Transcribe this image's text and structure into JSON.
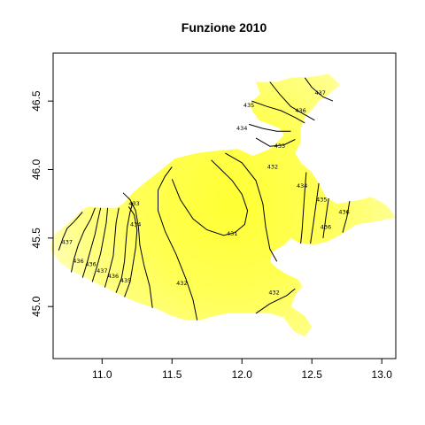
{
  "chart_data": {
    "type": "heatmap",
    "title": "Funzione 2010",
    "xlabel": "",
    "ylabel": "",
    "xlim": [
      10.65,
      13.1
    ],
    "ylim": [
      44.62,
      46.85
    ],
    "x_ticks": [
      11.0,
      11.5,
      12.0,
      12.5,
      13.0
    ],
    "x_tick_labels": [
      "11.0",
      "11.5",
      "12.0",
      "12.5",
      "13.0"
    ],
    "y_ticks": [
      45.0,
      45.5,
      46.0,
      46.5
    ],
    "y_tick_labels": [
      "45.0",
      "45.5",
      "46.0",
      "46.5"
    ],
    "grid": false,
    "legend": "none",
    "colors": {
      "low": "#ffff33",
      "mid": "#ffff70",
      "high": "#ffffd4",
      "contour": "#000000"
    },
    "region_outline": [
      [
        11.52,
        46.08
      ],
      [
        11.68,
        46.12
      ],
      [
        11.85,
        46.14
      ],
      [
        11.97,
        46.15
      ],
      [
        12.08,
        46.1
      ],
      [
        12.2,
        46.15
      ],
      [
        12.25,
        46.2
      ],
      [
        12.3,
        46.25
      ],
      [
        12.27,
        46.3
      ],
      [
        12.2,
        46.33
      ],
      [
        12.12,
        46.36
      ],
      [
        12.08,
        46.42
      ],
      [
        12.05,
        46.48
      ],
      [
        12.13,
        46.55
      ],
      [
        12.1,
        46.64
      ],
      [
        12.25,
        46.64
      ],
      [
        12.35,
        46.67
      ],
      [
        12.52,
        46.68
      ],
      [
        12.62,
        46.7
      ],
      [
        12.7,
        46.62
      ],
      [
        12.62,
        46.55
      ],
      [
        12.55,
        46.5
      ],
      [
        12.5,
        46.44
      ],
      [
        12.45,
        46.38
      ],
      [
        12.42,
        46.3
      ],
      [
        12.42,
        46.2
      ],
      [
        12.38,
        46.12
      ],
      [
        12.42,
        46.05
      ],
      [
        12.5,
        45.98
      ],
      [
        12.55,
        45.9
      ],
      [
        12.6,
        45.8
      ],
      [
        12.68,
        45.75
      ],
      [
        12.85,
        45.78
      ],
      [
        12.92,
        45.8
      ],
      [
        13.02,
        45.75
      ],
      [
        13.05,
        45.72
      ],
      [
        13.1,
        45.65
      ],
      [
        12.95,
        45.62
      ],
      [
        12.82,
        45.6
      ],
      [
        12.7,
        45.52
      ],
      [
        12.6,
        45.47
      ],
      [
        12.5,
        45.45
      ],
      [
        12.4,
        45.47
      ],
      [
        12.35,
        45.5
      ],
      [
        12.3,
        45.45
      ],
      [
        12.22,
        45.4
      ],
      [
        12.2,
        45.33
      ],
      [
        12.25,
        45.28
      ],
      [
        12.33,
        45.23
      ],
      [
        12.4,
        45.2
      ],
      [
        12.43,
        45.15
      ],
      [
        12.38,
        45.08
      ],
      [
        12.35,
        45.0
      ],
      [
        12.45,
        44.93
      ],
      [
        12.5,
        44.85
      ],
      [
        12.45,
        44.78
      ],
      [
        12.37,
        44.82
      ],
      [
        12.3,
        44.92
      ],
      [
        12.2,
        44.95
      ],
      [
        12.1,
        44.95
      ],
      [
        12.0,
        44.95
      ],
      [
        11.9,
        44.95
      ],
      [
        11.8,
        44.93
      ],
      [
        11.7,
        44.9
      ],
      [
        11.6,
        44.9
      ],
      [
        11.5,
        44.93
      ],
      [
        11.42,
        44.97
      ],
      [
        11.35,
        45.0
      ],
      [
        11.28,
        45.02
      ],
      [
        11.2,
        45.05
      ],
      [
        11.1,
        45.1
      ],
      [
        11.0,
        45.15
      ],
      [
        10.9,
        45.2
      ],
      [
        10.8,
        45.25
      ],
      [
        10.7,
        45.32
      ],
      [
        10.63,
        45.42
      ],
      [
        10.65,
        45.52
      ],
      [
        10.75,
        45.6
      ],
      [
        10.85,
        45.7
      ],
      [
        10.9,
        45.73
      ],
      [
        11.0,
        45.72
      ],
      [
        11.1,
        45.72
      ],
      [
        11.15,
        45.75
      ],
      [
        11.22,
        45.83
      ],
      [
        11.3,
        45.9
      ],
      [
        11.4,
        45.98
      ]
    ],
    "contours": [
      {
        "level": "437",
        "points": [
          [
            10.69,
            45.41
          ],
          [
            10.72,
            45.5
          ],
          [
            10.75,
            45.57
          ],
          [
            10.8,
            45.62
          ],
          [
            10.86,
            45.69
          ]
        ],
        "label_at": [
          10.75,
          45.47
        ]
      },
      {
        "level": "436",
        "points": [
          [
            10.78,
            45.25
          ],
          [
            10.8,
            45.35
          ],
          [
            10.83,
            45.45
          ],
          [
            10.87,
            45.55
          ],
          [
            10.92,
            45.64
          ],
          [
            10.95,
            45.72
          ]
        ],
        "label_at": [
          10.83,
          45.33
        ]
      },
      {
        "level": "436",
        "points": [
          [
            10.86,
            45.21
          ],
          [
            10.89,
            45.31
          ],
          [
            10.92,
            45.42
          ],
          [
            10.95,
            45.53
          ],
          [
            10.97,
            45.63
          ],
          [
            10.99,
            45.72
          ]
        ],
        "label_at": [
          10.92,
          45.31
        ]
      },
      {
        "level": "437",
        "points": [
          [
            10.93,
            45.18
          ],
          [
            10.96,
            45.28
          ],
          [
            10.99,
            45.39
          ],
          [
            11.01,
            45.5
          ],
          [
            11.03,
            45.61
          ],
          [
            11.04,
            45.72
          ]
        ],
        "label_at": [
          11.0,
          45.26
        ]
      },
      {
        "level": "436",
        "points": [
          [
            11.02,
            45.14
          ],
          [
            11.05,
            45.25
          ],
          [
            11.08,
            45.37
          ],
          [
            11.09,
            45.49
          ],
          [
            11.1,
            45.61
          ],
          [
            11.12,
            45.72
          ]
        ],
        "label_at": [
          11.08,
          45.22
        ]
      },
      {
        "level": "435",
        "points": [
          [
            11.1,
            45.1
          ],
          [
            11.14,
            45.21
          ],
          [
            11.16,
            45.33
          ],
          [
            11.17,
            45.46
          ],
          [
            11.18,
            45.58
          ],
          [
            11.2,
            45.69
          ],
          [
            11.22,
            45.76
          ]
        ],
        "label_at": [
          11.17,
          45.19
        ]
      },
      {
        "level": "434",
        "points": [
          [
            11.16,
            45.07
          ],
          [
            11.2,
            45.18
          ],
          [
            11.22,
            45.3
          ],
          [
            11.24,
            45.43
          ],
          [
            11.25,
            45.56
          ],
          [
            11.23,
            45.67
          ],
          [
            11.19,
            45.73
          ]
        ],
        "label_at": [
          11.24,
          45.6
        ]
      },
      {
        "level": "433",
        "points": [
          [
            11.36,
            44.99
          ],
          [
            11.34,
            45.15
          ],
          [
            11.3,
            45.3
          ],
          [
            11.27,
            45.45
          ],
          [
            11.26,
            45.58
          ],
          [
            11.24,
            45.7
          ],
          [
            11.2,
            45.78
          ],
          [
            11.15,
            45.83
          ]
        ],
        "label_at": [
          11.23,
          45.75
        ]
      },
      {
        "level": "432",
        "points": [
          [
            11.68,
            44.9
          ],
          [
            11.65,
            45.05
          ],
          [
            11.6,
            45.2
          ],
          [
            11.53,
            45.38
          ],
          [
            11.45,
            45.55
          ],
          [
            11.4,
            45.7
          ],
          [
            11.4,
            45.85
          ],
          [
            11.45,
            45.95
          ],
          [
            11.5,
            46.02
          ]
        ],
        "label_at": [
          11.57,
          45.17
        ]
      },
      {
        "level": "431",
        "points": [
          [
            11.5,
            45.93
          ],
          [
            11.56,
            45.78
          ],
          [
            11.65,
            45.64
          ],
          [
            11.75,
            45.56
          ],
          [
            11.87,
            45.52
          ],
          [
            11.95,
            45.54
          ],
          [
            12.02,
            45.6
          ],
          [
            12.04,
            45.7
          ],
          [
            12.0,
            45.82
          ],
          [
            11.93,
            45.92
          ],
          [
            11.85,
            46.0
          ],
          [
            11.78,
            46.07
          ]
        ],
        "label_at": [
          11.93,
          45.53
        ]
      },
      {
        "level": "432",
        "points": [
          [
            11.88,
            46.12
          ],
          [
            12.0,
            46.05
          ],
          [
            12.1,
            45.92
          ],
          [
            12.15,
            45.75
          ],
          [
            12.17,
            45.58
          ],
          [
            12.2,
            45.42
          ],
          [
            12.25,
            45.33
          ]
        ],
        "label_at": [
          12.22,
          46.02
        ]
      },
      {
        "level": "432",
        "points": [
          [
            12.1,
            44.95
          ],
          [
            12.2,
            45.02
          ],
          [
            12.32,
            45.08
          ],
          [
            12.38,
            45.13
          ]
        ],
        "label_at": [
          12.23,
          45.1
        ]
      },
      {
        "level": "433",
        "points": [
          [
            12.1,
            46.23
          ],
          [
            12.2,
            46.17
          ],
          [
            12.3,
            46.18
          ],
          [
            12.38,
            46.22
          ]
        ],
        "label_at": [
          12.27,
          46.17
        ]
      },
      {
        "level": "434",
        "points": [
          [
            12.05,
            46.33
          ],
          [
            12.15,
            46.3
          ],
          [
            12.25,
            46.28
          ],
          [
            12.35,
            46.28
          ]
        ],
        "label_at": [
          12.0,
          46.3
        ]
      },
      {
        "level": "435",
        "points": [
          [
            12.07,
            46.5
          ],
          [
            12.18,
            46.46
          ],
          [
            12.28,
            46.43
          ],
          [
            12.38,
            46.38
          ],
          [
            12.45,
            46.34
          ]
        ],
        "label_at": [
          12.05,
          46.47
        ]
      },
      {
        "level": "436",
        "points": [
          [
            12.2,
            46.64
          ],
          [
            12.27,
            46.55
          ],
          [
            12.35,
            46.46
          ],
          [
            12.45,
            46.4
          ],
          [
            12.52,
            46.36
          ]
        ],
        "label_at": [
          12.42,
          46.43
        ]
      },
      {
        "level": "437",
        "points": [
          [
            12.45,
            46.67
          ],
          [
            12.5,
            46.6
          ],
          [
            12.58,
            46.53
          ],
          [
            12.65,
            46.5
          ]
        ],
        "label_at": [
          12.56,
          46.56
        ]
      },
      {
        "level": "434",
        "points": [
          [
            12.46,
            45.98
          ],
          [
            12.45,
            45.85
          ],
          [
            12.44,
            45.7
          ],
          [
            12.43,
            45.56
          ],
          [
            12.42,
            45.46
          ]
        ],
        "label_at": [
          12.43,
          45.88
        ]
      },
      {
        "level": "435",
        "points": [
          [
            12.55,
            45.9
          ],
          [
            12.53,
            45.75
          ],
          [
            12.51,
            45.6
          ],
          [
            12.49,
            45.46
          ]
        ],
        "label_at": [
          12.57,
          45.78
        ]
      },
      {
        "level": "436",
        "points": [
          [
            12.62,
            45.79
          ],
          [
            12.6,
            45.65
          ],
          [
            12.58,
            45.5
          ]
        ],
        "label_at": [
          12.6,
          45.58
        ]
      },
      {
        "level": "436",
        "points": [
          [
            12.77,
            45.77
          ],
          [
            12.75,
            45.65
          ],
          [
            12.72,
            45.54
          ]
        ],
        "label_at": [
          12.73,
          45.69
        ]
      }
    ]
  }
}
